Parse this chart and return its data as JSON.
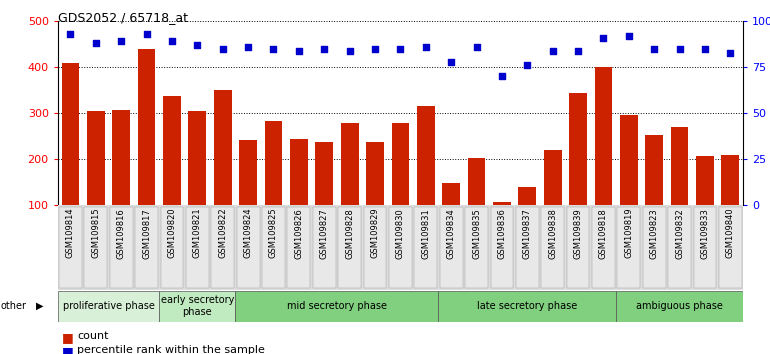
{
  "title": "GDS2052 / 65718_at",
  "samples": [
    "GSM109814",
    "GSM109815",
    "GSM109816",
    "GSM109817",
    "GSM109820",
    "GSM109821",
    "GSM109822",
    "GSM109824",
    "GSM109825",
    "GSM109826",
    "GSM109827",
    "GSM109828",
    "GSM109829",
    "GSM109830",
    "GSM109831",
    "GSM109834",
    "GSM109835",
    "GSM109836",
    "GSM109837",
    "GSM109838",
    "GSM109839",
    "GSM109818",
    "GSM109819",
    "GSM109823",
    "GSM109832",
    "GSM109833",
    "GSM109840"
  ],
  "counts": [
    410,
    305,
    308,
    440,
    338,
    305,
    350,
    242,
    283,
    245,
    238,
    278,
    237,
    278,
    315,
    148,
    203,
    107,
    140,
    220,
    345,
    400,
    297,
    253,
    270,
    208,
    210
  ],
  "percentiles": [
    93,
    88,
    89,
    93,
    89,
    87,
    85,
    86,
    85,
    84,
    85,
    84,
    85,
    85,
    86,
    78,
    86,
    70,
    76,
    84,
    84,
    91,
    92,
    85,
    85,
    85,
    83
  ],
  "bar_color": "#CC2200",
  "dot_color": "#0000CC",
  "phases": [
    {
      "label": "proliferative phase",
      "start": 0,
      "end": 4,
      "color": "#d8f0d8"
    },
    {
      "label": "early secretory\nphase",
      "start": 4,
      "end": 7,
      "color": "#c0eac0"
    },
    {
      "label": "mid secretory phase",
      "start": 7,
      "end": 15,
      "color": "#80d080"
    },
    {
      "label": "late secretory phase",
      "start": 15,
      "end": 22,
      "color": "#80d080"
    },
    {
      "label": "ambiguous phase",
      "start": 22,
      "end": 27,
      "color": "#80d080"
    }
  ],
  "ylim_left": [
    100,
    500
  ],
  "ylim_right": [
    0,
    100
  ],
  "yticks_left": [
    100,
    200,
    300,
    400,
    500
  ],
  "yticks_right": [
    0,
    25,
    50,
    75,
    100
  ],
  "ylabel_right_labels": [
    "0",
    "25",
    "50",
    "75",
    "100%"
  ]
}
